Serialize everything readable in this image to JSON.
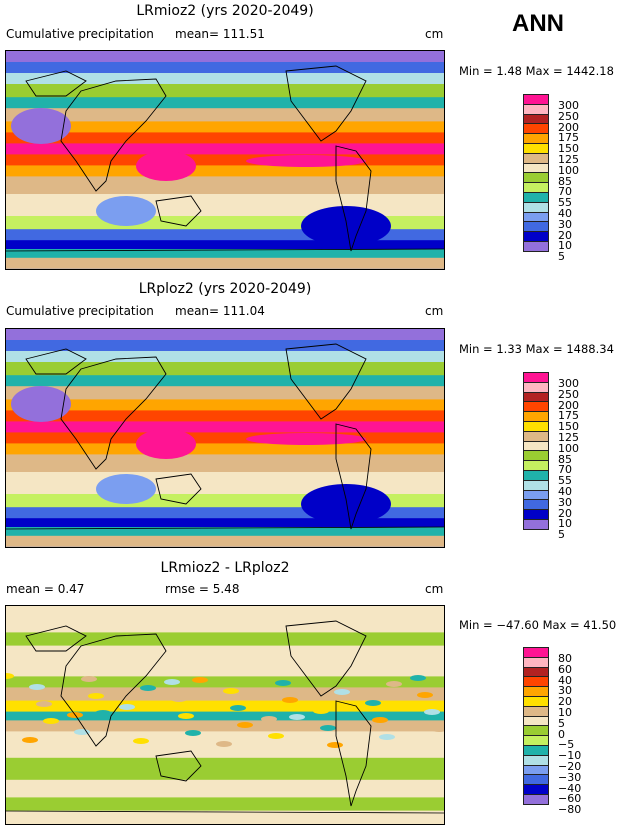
{
  "season": "ANN",
  "panels": [
    {
      "title": "LRmioz2 (yrs 2020-2049)",
      "subtitle": "Cumulative precipitation",
      "mean": "mean= 111.51",
      "units": "cm",
      "minmax": "Min =    1.48  Max = 1442.18"
    },
    {
      "title": "LRploz2 (yrs 2020-2049)",
      "subtitle": "Cumulative precipitation",
      "mean": "mean= 111.04",
      "units": "cm",
      "minmax": "Min =    1.33  Max = 1488.34"
    },
    {
      "title": "LRmioz2 - LRploz2",
      "subtitle": "mean =     0.47",
      "mean": "rmse =     5.48",
      "units": "cm",
      "minmax": "Min = −47.60  Max =   41.50"
    }
  ],
  "colors": [
    "#ff1493",
    "#ffb6c1",
    "#b22222",
    "#ff4500",
    "#ffa500",
    "#ffe000",
    "#deb887",
    "#f5e6c4",
    "#9acd32",
    "#c5f060",
    "#20b2aa",
    "#b0e0e6",
    "#7b9ef0",
    "#4169e1",
    "#0000c8",
    "#9370db"
  ],
  "levels_precip": [
    "300",
    "250",
    "200",
    "175",
    "150",
    "125",
    "100",
    "85",
    "70",
    "55",
    "40",
    "30",
    "20",
    "10",
    "5"
  ],
  "levels_diff": [
    "80",
    "60",
    "40",
    "30",
    "20",
    "10",
    "5",
    "0",
    "−5",
    "−10",
    "−20",
    "−30",
    "−40",
    "−60",
    "−80"
  ]
}
